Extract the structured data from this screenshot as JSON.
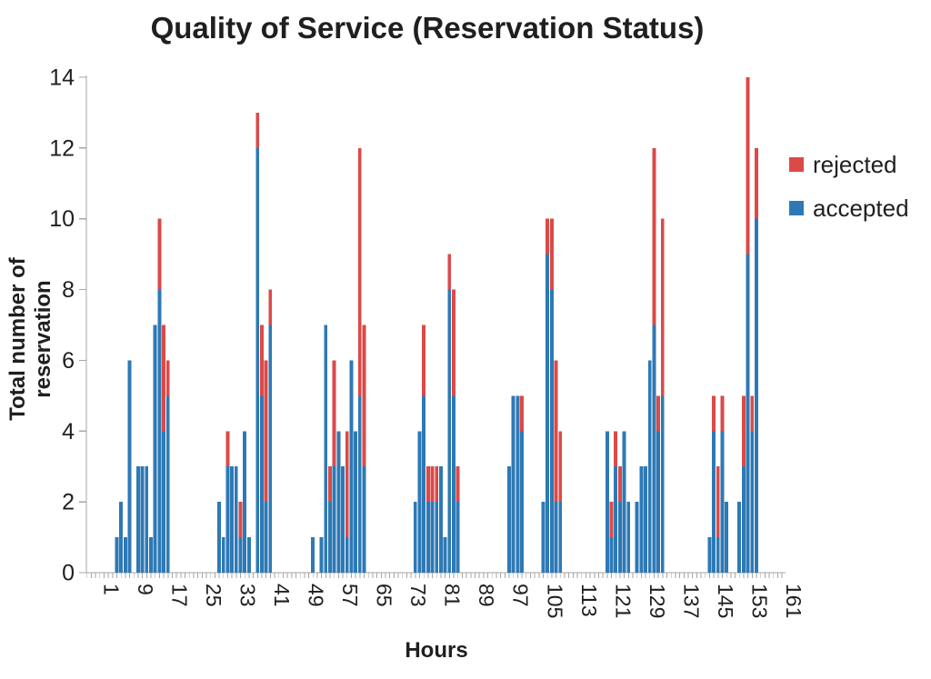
{
  "title": "Quality of Service (Reservation Status)",
  "legend": {
    "items": [
      {
        "label": "rejected",
        "color": "#db4a47"
      },
      {
        "label": "accepted",
        "color": "#2e79b5"
      }
    ]
  },
  "chart_data": {
    "type": "bar",
    "stacked": true,
    "title": "Quality of Service (Reservation Status)",
    "xlabel": "Hours",
    "ylabel": "Total number of reservation",
    "ylim": [
      0,
      14
    ],
    "yticks": [
      0,
      2,
      4,
      6,
      8,
      10,
      12,
      14
    ],
    "xtick_labels": [
      1,
      9,
      17,
      25,
      33,
      41,
      49,
      57,
      65,
      73,
      81,
      89,
      97,
      105,
      113,
      121,
      129,
      137,
      145,
      153,
      161
    ],
    "x_range_hours": [
      1,
      163
    ],
    "grid": false,
    "legend_position": "right",
    "series_colors": {
      "accepted": "#2e79b5",
      "rejected": "#db4a47"
    },
    "bars": [
      {
        "hour": 6,
        "accepted": 1,
        "rejected": 0
      },
      {
        "hour": 7,
        "accepted": 2,
        "rejected": 0
      },
      {
        "hour": 8,
        "accepted": 1,
        "rejected": 0
      },
      {
        "hour": 9,
        "accepted": 6,
        "rejected": 0
      },
      {
        "hour": 11,
        "accepted": 3,
        "rejected": 0
      },
      {
        "hour": 12,
        "accepted": 3,
        "rejected": 0
      },
      {
        "hour": 13,
        "accepted": 3,
        "rejected": 0
      },
      {
        "hour": 14,
        "accepted": 1,
        "rejected": 0
      },
      {
        "hour": 15,
        "accepted": 7,
        "rejected": 0
      },
      {
        "hour": 16,
        "accepted": 8,
        "rejected": 2
      },
      {
        "hour": 17,
        "accepted": 4,
        "rejected": 3
      },
      {
        "hour": 18,
        "accepted": 5,
        "rejected": 1
      },
      {
        "hour": 30,
        "accepted": 2,
        "rejected": 0
      },
      {
        "hour": 31,
        "accepted": 1,
        "rejected": 0
      },
      {
        "hour": 32,
        "accepted": 3,
        "rejected": 1
      },
      {
        "hour": 33,
        "accepted": 3,
        "rejected": 0
      },
      {
        "hour": 34,
        "accepted": 3,
        "rejected": 0
      },
      {
        "hour": 35,
        "accepted": 1,
        "rejected": 1
      },
      {
        "hour": 36,
        "accepted": 4,
        "rejected": 0
      },
      {
        "hour": 37,
        "accepted": 1,
        "rejected": 0
      },
      {
        "hour": 39,
        "accepted": 12,
        "rejected": 1
      },
      {
        "hour": 40,
        "accepted": 5,
        "rejected": 2
      },
      {
        "hour": 41,
        "accepted": 2,
        "rejected": 4
      },
      {
        "hour": 42,
        "accepted": 7,
        "rejected": 1
      },
      {
        "hour": 52,
        "accepted": 1,
        "rejected": 0
      },
      {
        "hour": 54,
        "accepted": 1,
        "rejected": 0
      },
      {
        "hour": 55,
        "accepted": 7,
        "rejected": 0
      },
      {
        "hour": 56,
        "accepted": 2,
        "rejected": 1
      },
      {
        "hour": 57,
        "accepted": 3,
        "rejected": 3
      },
      {
        "hour": 58,
        "accepted": 4,
        "rejected": 0
      },
      {
        "hour": 59,
        "accepted": 3,
        "rejected": 0
      },
      {
        "hour": 60,
        "accepted": 1,
        "rejected": 3
      },
      {
        "hour": 61,
        "accepted": 6,
        "rejected": 0
      },
      {
        "hour": 62,
        "accepted": 4,
        "rejected": 0
      },
      {
        "hour": 63,
        "accepted": 5,
        "rejected": 7
      },
      {
        "hour": 64,
        "accepted": 3,
        "rejected": 4
      },
      {
        "hour": 76,
        "accepted": 2,
        "rejected": 0
      },
      {
        "hour": 77,
        "accepted": 4,
        "rejected": 0
      },
      {
        "hour": 78,
        "accepted": 5,
        "rejected": 2
      },
      {
        "hour": 79,
        "accepted": 2,
        "rejected": 1
      },
      {
        "hour": 80,
        "accepted": 2,
        "rejected": 1
      },
      {
        "hour": 81,
        "accepted": 2,
        "rejected": 1
      },
      {
        "hour": 82,
        "accepted": 3,
        "rejected": 0
      },
      {
        "hour": 83,
        "accepted": 1,
        "rejected": 0
      },
      {
        "hour": 84,
        "accepted": 8,
        "rejected": 1
      },
      {
        "hour": 85,
        "accepted": 5,
        "rejected": 3
      },
      {
        "hour": 86,
        "accepted": 2,
        "rejected": 1
      },
      {
        "hour": 98,
        "accepted": 3,
        "rejected": 0
      },
      {
        "hour": 99,
        "accepted": 5,
        "rejected": 0
      },
      {
        "hour": 100,
        "accepted": 5,
        "rejected": 0
      },
      {
        "hour": 101,
        "accepted": 4,
        "rejected": 1
      },
      {
        "hour": 106,
        "accepted": 2,
        "rejected": 0
      },
      {
        "hour": 107,
        "accepted": 9,
        "rejected": 1
      },
      {
        "hour": 108,
        "accepted": 8,
        "rejected": 2
      },
      {
        "hour": 109,
        "accepted": 2,
        "rejected": 4
      },
      {
        "hour": 110,
        "accepted": 2,
        "rejected": 2
      },
      {
        "hour": 121,
        "accepted": 4,
        "rejected": 0
      },
      {
        "hour": 122,
        "accepted": 1,
        "rejected": 1
      },
      {
        "hour": 123,
        "accepted": 3,
        "rejected": 1
      },
      {
        "hour": 124,
        "accepted": 2,
        "rejected": 1
      },
      {
        "hour": 125,
        "accepted": 4,
        "rejected": 0
      },
      {
        "hour": 126,
        "accepted": 2,
        "rejected": 0
      },
      {
        "hour": 128,
        "accepted": 2,
        "rejected": 0
      },
      {
        "hour": 129,
        "accepted": 3,
        "rejected": 0
      },
      {
        "hour": 130,
        "accepted": 3,
        "rejected": 0
      },
      {
        "hour": 131,
        "accepted": 6,
        "rejected": 0
      },
      {
        "hour": 132,
        "accepted": 7,
        "rejected": 5
      },
      {
        "hour": 133,
        "accepted": 4,
        "rejected": 1
      },
      {
        "hour": 134,
        "accepted": 5,
        "rejected": 5
      },
      {
        "hour": 145,
        "accepted": 1,
        "rejected": 0
      },
      {
        "hour": 146,
        "accepted": 4,
        "rejected": 1
      },
      {
        "hour": 147,
        "accepted": 1,
        "rejected": 2
      },
      {
        "hour": 148,
        "accepted": 4,
        "rejected": 1
      },
      {
        "hour": 149,
        "accepted": 2,
        "rejected": 0
      },
      {
        "hour": 152,
        "accepted": 2,
        "rejected": 0
      },
      {
        "hour": 153,
        "accepted": 3,
        "rejected": 2
      },
      {
        "hour": 154,
        "accepted": 9,
        "rejected": 5
      },
      {
        "hour": 155,
        "accepted": 4,
        "rejected": 1
      },
      {
        "hour": 156,
        "accepted": 10,
        "rejected": 2
      }
    ]
  }
}
